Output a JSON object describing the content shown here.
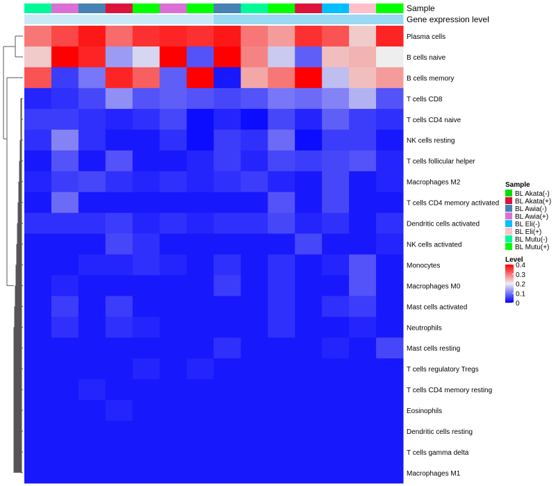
{
  "chart_data": {
    "type": "heatmap",
    "top_annotations": [
      {
        "name": "Sample",
        "label": "Sample"
      },
      {
        "name": "Gene expression level",
        "label": "Gene expression level"
      }
    ],
    "sample_annotation": [
      "BL Mutu(-)",
      "BL Awia(+)",
      "BL Awia(-)",
      "BL Akata(+)",
      "BL Mutu(+)",
      "BL Awia(+)",
      "BL Mutu(+)",
      "BL Awia(-)",
      "BL Mutu(-)",
      "BL Mutu(+)",
      "BL Akata(+)",
      "BL Eli(-)",
      "BL Eli(+)",
      "BL Mutu(+)"
    ],
    "expression_annotation_values": [
      0.12,
      0.12,
      0.12,
      0.12,
      0.12,
      0.12,
      0.12,
      0.55,
      0.55,
      0.55,
      0.55,
      0.55,
      0.55,
      0.55
    ],
    "rows": [
      "Plasma cells",
      "B cells naive",
      "B cells memory",
      "T cells CD8",
      "T cells CD4 naive",
      "NK cells resting",
      "T cells follicular helper",
      "Macrophages M2",
      "T cells CD4 memory activated",
      "Dendritic cells activated",
      "NK cells activated",
      "Monocytes",
      "Macrophages M0",
      "Mast cells activated",
      "Neutrophils",
      "Mast cells resting",
      "T cells regulatory  Tregs",
      "T cells CD4 memory resting",
      "Eosinophils",
      "Dendritic cells resting",
      "T cells gamma delta",
      "Macrophages M1"
    ],
    "values": [
      [
        0.3,
        0.34,
        0.38,
        0.31,
        0.36,
        0.37,
        0.36,
        0.38,
        0.3,
        0.27,
        0.36,
        0.33,
        0.23,
        0.37
      ],
      [
        0.23,
        0.4,
        0.37,
        0.13,
        0.18,
        0.4,
        0.07,
        0.4,
        0.29,
        0.17,
        0.08,
        0.24,
        0.25,
        0.2
      ],
      [
        0.33,
        0.05,
        0.1,
        0.37,
        0.32,
        0.08,
        0.4,
        0.02,
        0.26,
        0.3,
        0.4,
        0.16,
        0.24,
        0.27
      ],
      [
        0.03,
        0.04,
        0.06,
        0.12,
        0.07,
        0.08,
        0.07,
        0.06,
        0.07,
        0.1,
        0.09,
        0.11,
        0.15,
        0.07
      ],
      [
        0.05,
        0.05,
        0.04,
        0.03,
        0.04,
        0.06,
        0.01,
        0.03,
        0.01,
        0.06,
        0.03,
        0.08,
        0.05,
        0.04
      ],
      [
        0.04,
        0.11,
        0.04,
        0.02,
        0.02,
        0.04,
        0.01,
        0.05,
        0.04,
        0.09,
        0.01,
        0.05,
        0.05,
        0.02
      ],
      [
        0.02,
        0.07,
        0.02,
        0.07,
        0.02,
        0.02,
        0.03,
        0.05,
        0.03,
        0.06,
        0.05,
        0.06,
        0.07,
        0.03
      ],
      [
        0.03,
        0.05,
        0.06,
        0.04,
        0.03,
        0.04,
        0.03,
        0.04,
        0.05,
        0.03,
        0.02,
        0.06,
        0.02,
        0.03
      ],
      [
        0.02,
        0.09,
        0.02,
        0.02,
        0.02,
        0.02,
        0.02,
        0.02,
        0.02,
        0.07,
        0.02,
        0.06,
        0.02,
        0.02
      ],
      [
        0.04,
        0.04,
        0.04,
        0.05,
        0.03,
        0.04,
        0.03,
        0.04,
        0.04,
        0.06,
        0.03,
        0.04,
        0.02,
        0.04
      ],
      [
        0.02,
        0.02,
        0.02,
        0.06,
        0.04,
        0.02,
        0.02,
        0.02,
        0.02,
        0.02,
        0.06,
        0.02,
        0.02,
        0.03
      ],
      [
        0.02,
        0.02,
        0.03,
        0.03,
        0.04,
        0.03,
        0.02,
        0.04,
        0.02,
        0.04,
        0.02,
        0.03,
        0.07,
        0.02
      ],
      [
        0.02,
        0.03,
        0.02,
        0.02,
        0.02,
        0.02,
        0.02,
        0.05,
        0.02,
        0.04,
        0.02,
        0.02,
        0.07,
        0.02
      ],
      [
        0.02,
        0.05,
        0.02,
        0.05,
        0.02,
        0.02,
        0.02,
        0.02,
        0.02,
        0.04,
        0.02,
        0.04,
        0.05,
        0.02
      ],
      [
        0.02,
        0.04,
        0.02,
        0.04,
        0.03,
        0.02,
        0.02,
        0.02,
        0.02,
        0.04,
        0.02,
        0.02,
        0.03,
        0.02
      ],
      [
        0.02,
        0.02,
        0.02,
        0.02,
        0.02,
        0.02,
        0.02,
        0.04,
        0.02,
        0.02,
        0.02,
        0.03,
        0.02,
        0.06
      ],
      [
        0.02,
        0.02,
        0.02,
        0.02,
        0.03,
        0.02,
        0.03,
        0.02,
        0.02,
        0.02,
        0.02,
        0.02,
        0.02,
        0.02
      ],
      [
        0.02,
        0.02,
        0.03,
        0.02,
        0.02,
        0.02,
        0.02,
        0.02,
        0.02,
        0.02,
        0.02,
        0.02,
        0.02,
        0.02
      ],
      [
        0.02,
        0.02,
        0.02,
        0.03,
        0.02,
        0.02,
        0.02,
        0.02,
        0.02,
        0.02,
        0.02,
        0.02,
        0.02,
        0.02
      ],
      [
        0.02,
        0.02,
        0.02,
        0.02,
        0.02,
        0.02,
        0.02,
        0.02,
        0.02,
        0.02,
        0.02,
        0.02,
        0.02,
        0.02
      ],
      [
        0.02,
        0.02,
        0.02,
        0.02,
        0.02,
        0.02,
        0.02,
        0.02,
        0.02,
        0.02,
        0.02,
        0.02,
        0.02,
        0.02
      ],
      [
        0.02,
        0.02,
        0.02,
        0.02,
        0.02,
        0.02,
        0.02,
        0.02,
        0.02,
        0.02,
        0.02,
        0.02,
        0.02,
        0.02
      ]
    ],
    "color_scale": {
      "min": 0,
      "mid": 0.2,
      "max": 0.4,
      "low": "#0000ff",
      "mid_color": "#eeeeee",
      "high": "#ff0000"
    },
    "legend": {
      "sample_title": "Sample",
      "level_title": "Level",
      "sample_entries": [
        {
          "label": "BL Akata(-)",
          "color": "#00e000"
        },
        {
          "label": "BL Akata(+)",
          "color": "#dc143c"
        },
        {
          "label": "BL Awia(-)",
          "color": "#4682b4"
        },
        {
          "label": "BL Awia(+)",
          "color": "#da70d6"
        },
        {
          "label": "BL Eli(-)",
          "color": "#00bfff"
        },
        {
          "label": "BL Eli(+)",
          "color": "#ffc0cb"
        },
        {
          "label": "BL Mutu(-)",
          "color": "#00fa9a"
        },
        {
          "label": "BL Mutu(+)",
          "color": "#00ff00"
        }
      ],
      "level_ticks": [
        "0.4",
        "0.3",
        "0.2",
        "0.1",
        "0"
      ]
    },
    "expression_colors": {
      "low": "#d6eef8",
      "high": "#67c8ef"
    },
    "dendrogram": "row clustering"
  }
}
